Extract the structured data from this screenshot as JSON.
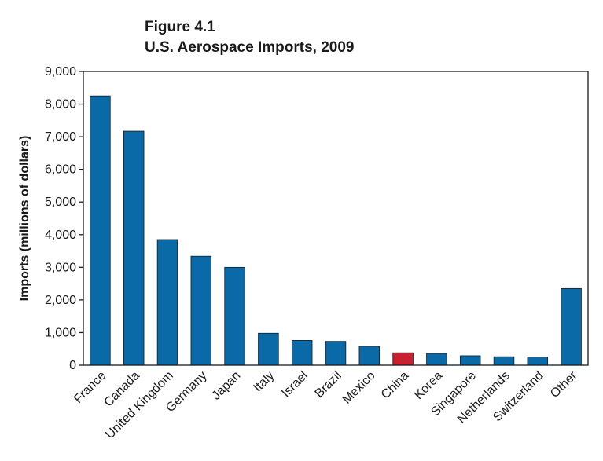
{
  "figure": {
    "label": "Figure 4.1",
    "title": "U.S. Aerospace Imports, 2009"
  },
  "colors": {
    "bar": "#0a6aa8",
    "highlight": "#c8202f",
    "axis": "#1a1a1a"
  },
  "chart_data": {
    "type": "bar",
    "title": "U.S. Aerospace Imports, 2009",
    "xlabel": "",
    "ylabel": "Imports (millions of dollars)",
    "ylim": [
      0,
      9000
    ],
    "yticks": [
      0,
      1000,
      2000,
      3000,
      4000,
      5000,
      6000,
      7000,
      8000,
      9000
    ],
    "ytick_labels": [
      "0",
      "1,000",
      "2,000",
      "3,000",
      "4,000",
      "5,000",
      "6,000",
      "7,000",
      "8,000",
      "9,000"
    ],
    "categories": [
      "France",
      "Canada",
      "United Kingdom",
      "Germany",
      "Japan",
      "Italy",
      "Israel",
      "Brazil",
      "Mexico",
      "China",
      "Korea",
      "Singapore",
      "Netherlands",
      "Switzerland",
      "Other"
    ],
    "values": [
      8250,
      7170,
      3850,
      3340,
      3000,
      980,
      760,
      730,
      580,
      380,
      360,
      290,
      260,
      250,
      2350
    ],
    "highlight_category": "China",
    "grid": false,
    "legend": "none"
  }
}
